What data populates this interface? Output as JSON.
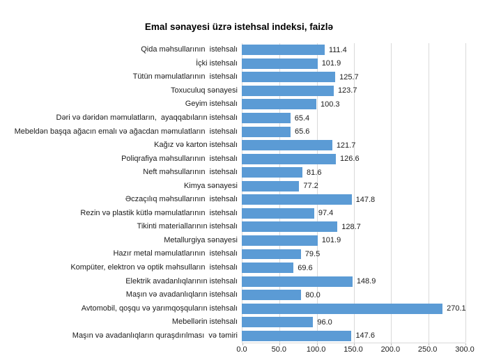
{
  "title": "Emal sənayesi üzrə istehsal indeksi, faizlə",
  "chart_data": {
    "type": "bar",
    "orientation": "horizontal",
    "title": "Emal sənayesi üzrə istehsal indeksi, faizlə",
    "xlabel": "",
    "ylabel": "",
    "xlim": [
      0,
      300
    ],
    "grid": true,
    "bar_color": "#5B9BD5",
    "gridline_color": "#D9D9D9",
    "categories": [
      "Qida məhsullarının  istehsalı",
      "İçki istehsalı",
      "Tütün məmulatlarının  istehsalı",
      "Toxuculuq sənayesi",
      "Geyim istehsalı",
      "Dəri və dəridən məmulatların,  ayaqqabıların istehsalı",
      "Mebeldən başqa ağacın emalı və ağacdan məmulatların  istehsalı",
      "Kağız və karton istehsalı",
      "Poliqrafiya məhsullarının  istehsalı",
      "Neft məhsullarının  istehsalı",
      "Kimya sənayesi",
      "Əczaçılıq məhsullarının  istehsalı",
      "Rezin və plastik kütlə məmulatlarının  istehsalı",
      "Tikinti materiallarının istehsalı",
      "Metallurgiya sənayesi",
      "Hazır metal məmulatlarının  istehsalı",
      "Kompüter, elektron və optik məhsulların  istehsalı",
      "Elektrik avadanlıqlarının istehsalı",
      "Maşın və avadanlıqların istehsalı",
      "Avtomobil, qoşqu və yarımqoşquların istehsalı",
      "Mebellərin istehsalı",
      "Maşın və avadanlıqların quraşdırılması  və təmiri"
    ],
    "values": [
      111.4,
      101.9,
      125.7,
      123.7,
      100.3,
      65.4,
      65.6,
      121.7,
      126.6,
      81.6,
      77.2,
      147.8,
      97.4,
      128.7,
      101.9,
      79.5,
      69.6,
      148.9,
      80.0,
      270.1,
      96.0,
      147.6
    ],
    "value_labels": [
      "111.4",
      "101.9",
      "125.7",
      "123.7",
      "100.3",
      "65.4",
      "65.6",
      "121.7",
      "126.6",
      "81.6",
      "77.2",
      "147.8",
      "97.4",
      "128.7",
      "101.9",
      "79.5",
      "69.6",
      "148.9",
      "80.0",
      "270.1",
      "96.0",
      "147.6"
    ],
    "x_ticks": [
      "0.0",
      "50.0",
      "100.0",
      "150.0",
      "200.0",
      "250.0",
      "300.0"
    ]
  }
}
